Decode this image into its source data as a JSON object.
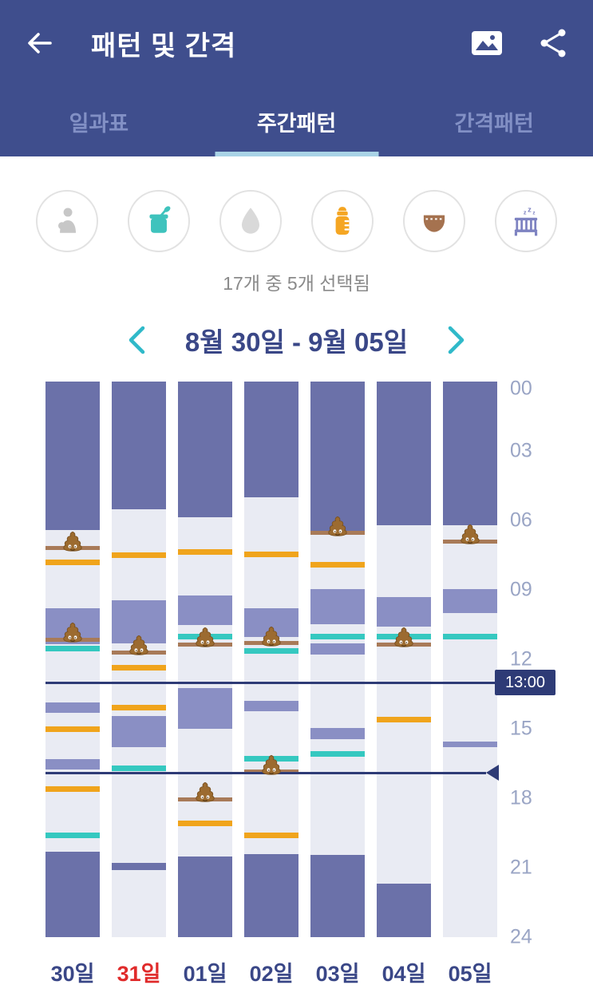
{
  "app_bar": {
    "title": "패턴 및 간격",
    "icons": [
      "arrow-left-icon",
      "image-icon",
      "share-icon"
    ]
  },
  "tabs": [
    {
      "id": "daily",
      "label": "일과표",
      "active": false
    },
    {
      "id": "weekly",
      "label": "주간패턴",
      "active": true
    },
    {
      "id": "interval",
      "label": "간격패턴",
      "active": false
    }
  ],
  "filters": {
    "selection_text": "17개 중 5개 선택됨",
    "items": [
      {
        "id": "breastfeeding",
        "icon": "breastfeeding-icon",
        "color": "#c7c7c7",
        "active": false
      },
      {
        "id": "baby-food",
        "icon": "baby-food-icon",
        "color": "#3fc3bd",
        "active": true
      },
      {
        "id": "water",
        "icon": "water-drop-icon",
        "color": "#d9d9d9",
        "active": false
      },
      {
        "id": "bottle",
        "icon": "bottle-icon",
        "color": "#f5a623",
        "active": true
      },
      {
        "id": "diaper",
        "icon": "diaper-icon",
        "color": "#a5724f",
        "active": true
      },
      {
        "id": "sleep",
        "icon": "crib-icon",
        "color": "#7d82c1",
        "active": true
      }
    ]
  },
  "date_nav": {
    "label": "8월 30일 - 9월 05일"
  },
  "chart_data": {
    "type": "weekly-pattern-timeline",
    "hour_ticks": [
      "00",
      "03",
      "06",
      "09",
      "12",
      "15",
      "18",
      "21",
      "24"
    ],
    "hour_range": [
      0,
      24
    ],
    "colors": {
      "sleep_night": "#6b71a9",
      "sleep_nap": "#8a8fc4",
      "bottle": "#f0a41c",
      "food": "#35c8c0",
      "diaper": "#a87a58",
      "column_bg": "#e9ebf3",
      "marker": "#2e3b76"
    },
    "marker_lines": [
      {
        "hour": 13.0,
        "label": "13:00",
        "style": "badge"
      },
      {
        "hour": 16.9,
        "label": "",
        "style": "arrow"
      }
    ],
    "days": [
      {
        "label": "30일",
        "highlight": false,
        "events": [
          {
            "type": "sleep",
            "shade": "night",
            "start": 0,
            "end": 6.4
          },
          {
            "type": "diaper",
            "poop": true,
            "start": 7.2
          },
          {
            "type": "bottle",
            "start": 7.8
          },
          {
            "type": "sleep",
            "shade": "nap",
            "start": 9.8,
            "end": 11.35
          },
          {
            "type": "diaper",
            "poop": true,
            "start": 11.15
          },
          {
            "type": "food",
            "start": 11.55
          },
          {
            "type": "sleep",
            "shade": "nap",
            "start": 13.85,
            "end": 14.3
          },
          {
            "type": "bottle",
            "start": 15.0
          },
          {
            "type": "sleep",
            "shade": "nap",
            "start": 16.3,
            "end": 16.75
          },
          {
            "type": "bottle",
            "start": 17.6
          },
          {
            "type": "food",
            "start": 19.6
          },
          {
            "type": "sleep",
            "shade": "night",
            "start": 20.3,
            "end": 24
          }
        ]
      },
      {
        "label": "31일",
        "highlight": true,
        "events": [
          {
            "type": "sleep",
            "shade": "night",
            "start": 0,
            "end": 5.5
          },
          {
            "type": "bottle",
            "start": 7.5
          },
          {
            "type": "sleep",
            "shade": "nap",
            "start": 9.45,
            "end": 11.3
          },
          {
            "type": "diaper",
            "poop": true,
            "start": 11.7
          },
          {
            "type": "bottle",
            "start": 12.35
          },
          {
            "type": "bottle",
            "start": 14.1
          },
          {
            "type": "sleep",
            "shade": "nap",
            "start": 14.45,
            "end": 15.8
          },
          {
            "type": "food",
            "start": 16.7
          },
          {
            "type": "sleep",
            "shade": "night",
            "start": 20.8,
            "end": 21.1
          }
        ]
      },
      {
        "label": "01일",
        "highlight": false,
        "events": [
          {
            "type": "sleep",
            "shade": "night",
            "start": 0,
            "end": 5.85
          },
          {
            "type": "bottle",
            "start": 7.35
          },
          {
            "type": "sleep",
            "shade": "nap",
            "start": 9.25,
            "end": 10.5
          },
          {
            "type": "food",
            "start": 11.0
          },
          {
            "type": "diaper",
            "poop": true,
            "start": 11.35
          },
          {
            "type": "sleep",
            "shade": "nap",
            "start": 13.25,
            "end": 15.0
          },
          {
            "type": "diaper",
            "poop": true,
            "start": 18.05
          },
          {
            "type": "bottle",
            "start": 19.1
          },
          {
            "type": "sleep",
            "shade": "night",
            "start": 20.5,
            "end": 24
          }
        ]
      },
      {
        "label": "02일",
        "highlight": false,
        "events": [
          {
            "type": "sleep",
            "shade": "night",
            "start": 0,
            "end": 5.0
          },
          {
            "type": "bottle",
            "start": 7.45
          },
          {
            "type": "sleep",
            "shade": "nap",
            "start": 9.8,
            "end": 11.05
          },
          {
            "type": "diaper",
            "poop": true,
            "start": 11.3
          },
          {
            "type": "food",
            "start": 11.65
          },
          {
            "type": "sleep",
            "shade": "nap",
            "start": 13.8,
            "end": 14.25
          },
          {
            "type": "food",
            "start": 16.3
          },
          {
            "type": "diaper",
            "poop": true,
            "start": 16.85
          },
          {
            "type": "bottle",
            "start": 19.6
          },
          {
            "type": "sleep",
            "shade": "night",
            "start": 20.4,
            "end": 24
          }
        ]
      },
      {
        "label": "03일",
        "highlight": false,
        "events": [
          {
            "type": "sleep",
            "shade": "night",
            "start": 0,
            "end": 6.5
          },
          {
            "type": "diaper",
            "poop": true,
            "start": 6.55
          },
          {
            "type": "bottle",
            "start": 7.9
          },
          {
            "type": "sleep",
            "shade": "nap",
            "start": 8.95,
            "end": 10.5
          },
          {
            "type": "food",
            "start": 11.0
          },
          {
            "type": "sleep",
            "shade": "nap",
            "start": 11.3,
            "end": 11.8
          },
          {
            "type": "sleep",
            "shade": "nap",
            "start": 14.95,
            "end": 15.45
          },
          {
            "type": "food",
            "start": 16.1
          },
          {
            "type": "sleep",
            "shade": "night",
            "start": 20.45,
            "end": 24
          }
        ]
      },
      {
        "label": "04일",
        "highlight": false,
        "events": [
          {
            "type": "sleep",
            "shade": "night",
            "start": 0,
            "end": 6.2
          },
          {
            "type": "sleep",
            "shade": "nap",
            "start": 9.3,
            "end": 10.6
          },
          {
            "type": "food",
            "start": 11.0
          },
          {
            "type": "diaper",
            "poop": true,
            "start": 11.35
          },
          {
            "type": "bottle",
            "start": 14.6
          },
          {
            "type": "sleep",
            "shade": "night",
            "start": 21.7,
            "end": 24
          }
        ]
      },
      {
        "label": "05일",
        "highlight": false,
        "events": [
          {
            "type": "sleep",
            "shade": "night",
            "start": 0,
            "end": 6.2
          },
          {
            "type": "diaper",
            "poop": true,
            "start": 6.9
          },
          {
            "type": "sleep",
            "shade": "nap",
            "start": 8.95,
            "end": 10.0
          },
          {
            "type": "food",
            "start": 11.0
          },
          {
            "type": "sleep",
            "shade": "nap",
            "start": 15.55,
            "end": 15.8
          }
        ]
      }
    ]
  }
}
